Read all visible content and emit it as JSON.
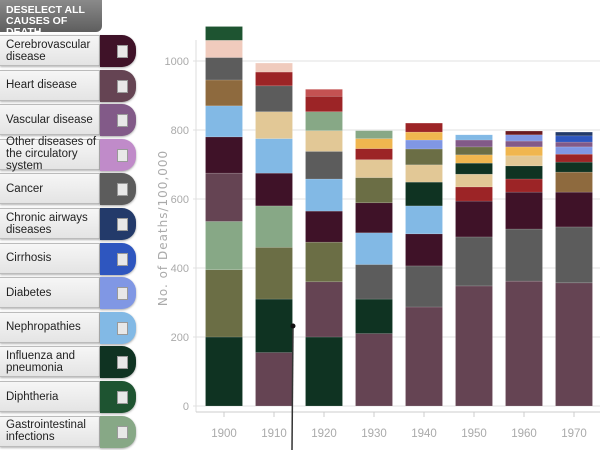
{
  "sidebar": {
    "deselect_label": "DESELECT ALL CAUSES OF DEATH",
    "items": [
      {
        "label": "Cerebrovascular disease",
        "color": "#3f1228",
        "checked": false
      },
      {
        "label": "Heart disease",
        "color": "#654453",
        "checked": false
      },
      {
        "label": "Vascular disease",
        "color": "#825a88",
        "checked": false
      },
      {
        "label": "Other diseases of the circulatory system",
        "color": "#c08bc9",
        "checked": false
      },
      {
        "label": "Cancer",
        "color": "#5c5c5c",
        "checked": false
      },
      {
        "label": "Chronic airways diseases",
        "color": "#233a6a",
        "checked": false
      },
      {
        "label": "Cirrhosis",
        "color": "#2e56bf",
        "checked": false
      },
      {
        "label": "Diabetes",
        "color": "#8097e4",
        "checked": false
      },
      {
        "label": "Nephropathies",
        "color": "#82b9e5",
        "checked": false
      },
      {
        "label": "Influenza and pneumonia",
        "color": "#0f3322",
        "checked": false
      },
      {
        "label": "Diphtheria",
        "color": "#1e5431",
        "checked": false
      },
      {
        "label": "Gastrointestinal infections",
        "color": "#87a886",
        "checked": false
      }
    ]
  },
  "chart_data": {
    "type": "bar",
    "stacked": true,
    "ylabel": "No. of Deaths/100,000",
    "ylim": [
      0,
      1100
    ],
    "yticks": [
      0,
      200,
      400,
      600,
      800,
      1000
    ],
    "grid": true,
    "series_colors": {
      "cerebro": "#3f1228",
      "heart": "#654453",
      "vascular": "#825a88",
      "cancer": "#5c5c5c",
      "chronic": "#233a6a",
      "cirrhosis": "#2e56bf",
      "diabetes": "#8097e4",
      "nephro": "#82b9e5",
      "flu": "#0f3322",
      "diphtheria": "#1e5431",
      "gastro": "#87a886",
      "olive": "#6b6e45",
      "brown": "#8e6a3e",
      "pink": "#f0cbbd",
      "tan": "#e2c896",
      "red": "#9c2426",
      "yellow": "#f0b64f",
      "lightred": "#c45252",
      "darkred": "#6b1a20"
    },
    "categories": [
      "1900",
      "1910",
      "1920",
      "1930",
      "1940",
      "1950",
      "1960",
      "1970"
    ],
    "stacks": [
      [
        [
          "flu",
          200
        ],
        [
          "olive",
          195
        ],
        [
          "gastro",
          140
        ],
        [
          "heart",
          140
        ],
        [
          "cerebro",
          105
        ],
        [
          "nephro",
          90
        ],
        [
          "brown",
          75
        ],
        [
          "cancer",
          65
        ],
        [
          "pink",
          50
        ],
        [
          "diphtheria",
          40
        ]
      ],
      [
        [
          "heart",
          155
        ],
        [
          "flu",
          155
        ],
        [
          "olive",
          150
        ],
        [
          "gastro",
          120
        ],
        [
          "cerebro",
          95
        ],
        [
          "nephro",
          100
        ],
        [
          "tan",
          78
        ],
        [
          "cancer",
          75
        ],
        [
          "red",
          40
        ],
        [
          "pink",
          26
        ]
      ],
      [
        [
          "flu",
          200
        ],
        [
          "heart",
          160
        ],
        [
          "olive",
          115
        ],
        [
          "cerebro",
          90
        ],
        [
          "nephro",
          93
        ],
        [
          "cancer",
          80
        ],
        [
          "tan",
          60
        ],
        [
          "gastro",
          55
        ],
        [
          "red",
          45
        ],
        [
          "lightred",
          20
        ]
      ],
      [
        [
          "heart",
          210
        ],
        [
          "flu",
          100
        ],
        [
          "cancer",
          100
        ],
        [
          "nephro",
          92
        ],
        [
          "cerebro",
          87
        ],
        [
          "olive",
          73
        ],
        [
          "tan",
          52
        ],
        [
          "red",
          32
        ],
        [
          "yellow",
          29
        ],
        [
          "gastro",
          23
        ]
      ],
      [
        [
          "heart",
          287
        ],
        [
          "cancer",
          119
        ],
        [
          "cerebro",
          93
        ],
        [
          "nephro",
          81
        ],
        [
          "flu",
          69
        ],
        [
          "tan",
          50
        ],
        [
          "olive",
          46
        ],
        [
          "diabetes",
          26
        ],
        [
          "yellow",
          23
        ],
        [
          "red",
          26
        ]
      ],
      [
        [
          "heart",
          348
        ],
        [
          "cancer",
          142
        ],
        [
          "cerebro",
          104
        ],
        [
          "red",
          41
        ],
        [
          "tan",
          37
        ],
        [
          "flu",
          32
        ],
        [
          "yellow",
          24
        ],
        [
          "olive",
          23
        ],
        [
          "vascular",
          20
        ],
        [
          "nephro",
          15
        ]
      ],
      [
        [
          "heart",
          362
        ],
        [
          "cancer",
          151
        ],
        [
          "cerebro",
          107
        ],
        [
          "red",
          38
        ],
        [
          "flu",
          38
        ],
        [
          "tan",
          29
        ],
        [
          "yellow",
          26
        ],
        [
          "vascular",
          17
        ],
        [
          "diabetes",
          18
        ],
        [
          "darkred",
          11
        ]
      ],
      [
        [
          "heart",
          357
        ],
        [
          "cancer",
          162
        ],
        [
          "cerebro",
          101
        ],
        [
          "brown",
          58
        ],
        [
          "flu",
          29
        ],
        [
          "red",
          23
        ],
        [
          "diabetes",
          21
        ],
        [
          "vascular",
          14
        ],
        [
          "cirrhosis",
          18
        ],
        [
          "chronic",
          11
        ]
      ]
    ]
  }
}
